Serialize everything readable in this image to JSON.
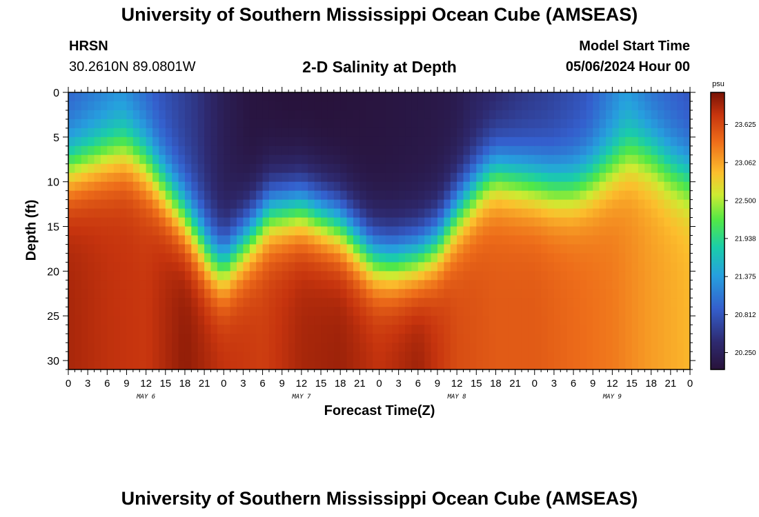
{
  "header": {
    "title": "University of Southern Mississippi Ocean Cube (AMSEAS)",
    "station_name": "HRSN",
    "station_coords": "30.2610N  89.0801W",
    "chart_title": "2-D Salinity at Depth",
    "model_start_label": "Model Start Time",
    "model_start_value": "05/06/2024 Hour 00"
  },
  "footer": {
    "title": "University of Southern Mississippi Ocean Cube (AMSEAS)"
  },
  "chart_data": {
    "type": "heatmap",
    "title": "2-D Salinity at Depth",
    "xlabel": "Forecast Time(Z)",
    "ylabel": "Depth (ft)",
    "x_range_hours": [
      0,
      96
    ],
    "ylim": [
      0,
      31
    ],
    "y_ticks": [
      0,
      5,
      10,
      15,
      20,
      25,
      30
    ],
    "x_tick_labels": [
      "0",
      "3",
      "6",
      "9",
      "12",
      "15",
      "18",
      "21",
      "0",
      "3",
      "6",
      "9",
      "12",
      "15",
      "18",
      "21",
      "0",
      "3",
      "6",
      "9",
      "12",
      "15",
      "18",
      "21",
      "0",
      "3",
      "6",
      "9",
      "12",
      "15",
      "18",
      "21",
      "0"
    ],
    "day_labels": [
      {
        "label": "MAY 6",
        "hour": 12
      },
      {
        "label": "MAY 7",
        "hour": 36
      },
      {
        "label": "MAY 8",
        "hour": 60
      },
      {
        "label": "MAY 9",
        "hour": 84
      }
    ],
    "colorbar": {
      "unit": "psu",
      "min": 20.0,
      "max": 24.1,
      "tick_values": [
        23.625,
        23.062,
        22.5,
        21.938,
        21.375,
        20.812,
        20.25
      ],
      "tick_labels": [
        "23.625",
        "23.062",
        "22.500",
        "21.938",
        "21.375",
        "20.812",
        "20.250"
      ]
    },
    "halocline_depth_ft": {
      "hours": [
        0,
        6,
        9,
        12,
        18,
        22,
        24,
        27,
        31,
        36,
        42,
        47,
        50,
        54,
        57,
        60,
        64,
        66,
        69,
        72,
        75,
        78,
        81,
        84,
        87,
        90,
        93,
        96
      ],
      "values": [
        8.5,
        7.0,
        6.5,
        8.0,
        14.0,
        18.5,
        19.5,
        17.0,
        13.5,
        13.0,
        15.0,
        18.5,
        19.0,
        18.5,
        17.0,
        13.5,
        10.0,
        9.0,
        9.5,
        10.0,
        10.5,
        10.5,
        9.5,
        8.0,
        6.5,
        7.0,
        8.5,
        9.5
      ]
    },
    "surface_salinity_psu": {
      "hours": [
        0,
        8,
        14,
        20,
        24,
        28,
        34,
        40,
        48,
        56,
        60,
        62,
        66,
        70,
        74,
        80,
        86,
        90,
        96
      ],
      "values": [
        20.9,
        21.2,
        20.8,
        20.5,
        20.2,
        20.05,
        20.0,
        20.0,
        20.05,
        20.1,
        20.15,
        20.25,
        20.35,
        20.5,
        20.6,
        20.8,
        21.3,
        21.0,
        20.8
      ]
    },
    "bottom_salinity_psu": {
      "hours": [
        0,
        6,
        12,
        18,
        24,
        30,
        36,
        42,
        48,
        54,
        60,
        66,
        72,
        78,
        84,
        90,
        96
      ],
      "values": [
        23.9,
        23.8,
        23.75,
        24.0,
        23.8,
        23.7,
        23.9,
        23.95,
        23.8,
        23.95,
        23.6,
        23.5,
        23.5,
        23.4,
        23.3,
        23.1,
        22.95
      ]
    },
    "transition_width_ft": 4.5
  }
}
